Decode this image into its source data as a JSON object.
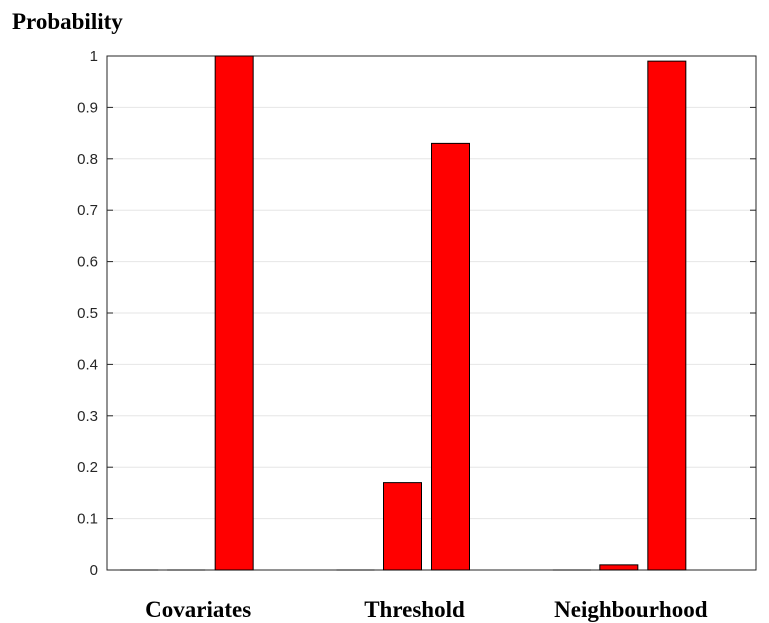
{
  "chart_data": {
    "type": "bar",
    "ylabel": "Probability",
    "xlabel": "",
    "title": "",
    "ylim": [
      0,
      1
    ],
    "yticks": [
      "0",
      "0.1",
      "0.2",
      "0.3",
      "0.4",
      "0.5",
      "0.6",
      "0.7",
      "0.8",
      "0.9",
      "1"
    ],
    "grid": true,
    "categories": [
      "Covariates",
      "Threshold",
      "Neighbourhood"
    ],
    "groups": [
      {
        "category": "Covariates",
        "values": [
          0,
          0,
          1.0
        ]
      },
      {
        "category": "Threshold",
        "values": [
          0,
          0.17,
          0.83
        ]
      },
      {
        "category": "Neighbourhood",
        "values": [
          0,
          0.01,
          0.99
        ]
      }
    ],
    "bar_color": "#ff0000"
  }
}
